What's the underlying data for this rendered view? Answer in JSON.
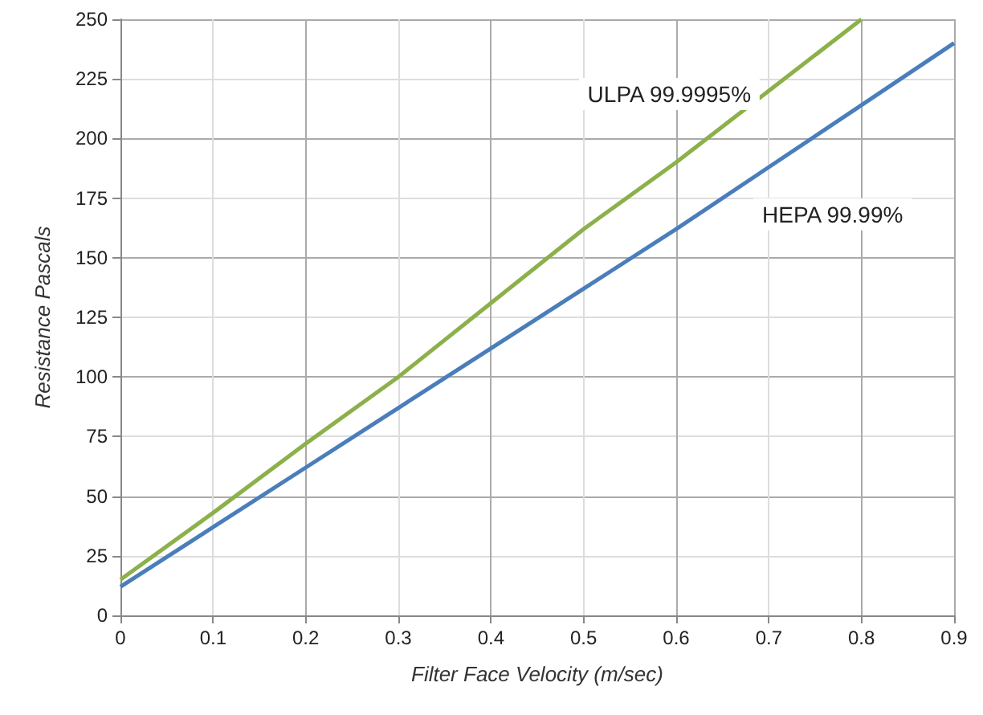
{
  "chart_data": {
    "type": "line",
    "xlabel": "Filter Face Velocity (m/sec)",
    "ylabel": "Resistance Pascals",
    "x": [
      0,
      0.1,
      0.2,
      0.3,
      0.4,
      0.5,
      0.6,
      0.7,
      0.8,
      0.9
    ],
    "series": [
      {
        "name": "HEPA 99.99%",
        "color": "#4a7ebb",
        "values": [
          12,
          37,
          62,
          87,
          112,
          137,
          162,
          188,
          214,
          240
        ]
      },
      {
        "name": "ULPA 99.9995%",
        "color": "#8cb04a",
        "values": [
          15,
          43,
          72,
          100,
          131,
          162,
          190,
          220,
          250,
          null
        ]
      }
    ],
    "xlim": [
      0,
      0.9
    ],
    "xticks": [
      0,
      0.1,
      0.2,
      0.3,
      0.4,
      0.5,
      0.6,
      0.7,
      0.8,
      0.9
    ],
    "ylim": [
      0,
      250
    ],
    "yticks": [
      0,
      25,
      50,
      75,
      100,
      125,
      150,
      175,
      200,
      225,
      250
    ],
    "grid": true,
    "marker": "none",
    "line_style": "solid"
  }
}
